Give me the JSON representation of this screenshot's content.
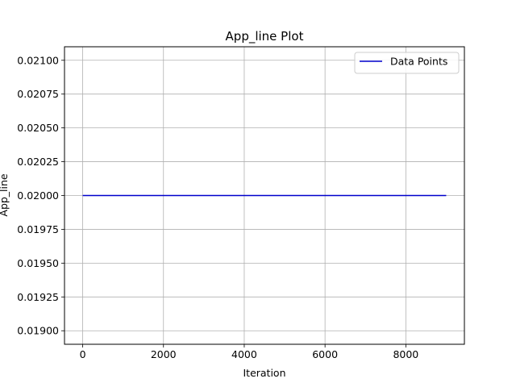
{
  "chart_data": {
    "type": "line",
    "title": "App_line Plot",
    "xlabel": "Iteration",
    "ylabel": "App_line",
    "xlim": [
      -450,
      9450
    ],
    "ylim": [
      0.0189,
      0.0211
    ],
    "xticks": [
      0,
      2000,
      4000,
      6000,
      8000
    ],
    "xtick_labels": [
      "0",
      "2000",
      "4000",
      "6000",
      "8000"
    ],
    "yticks": [
      0.019,
      0.01925,
      0.0195,
      0.01975,
      0.02,
      0.02025,
      0.0205,
      0.02075,
      0.021
    ],
    "ytick_labels": [
      "0.01900",
      "0.01925",
      "0.01950",
      "0.01975",
      "0.02000",
      "0.02025",
      "0.02050",
      "0.02075",
      "0.02100"
    ],
    "grid": true,
    "legend_position": "top-right",
    "series": [
      {
        "name": "Data Points",
        "color": "#0000cc",
        "x": [
          0,
          9000
        ],
        "y": [
          0.02,
          0.02
        ]
      }
    ]
  }
}
